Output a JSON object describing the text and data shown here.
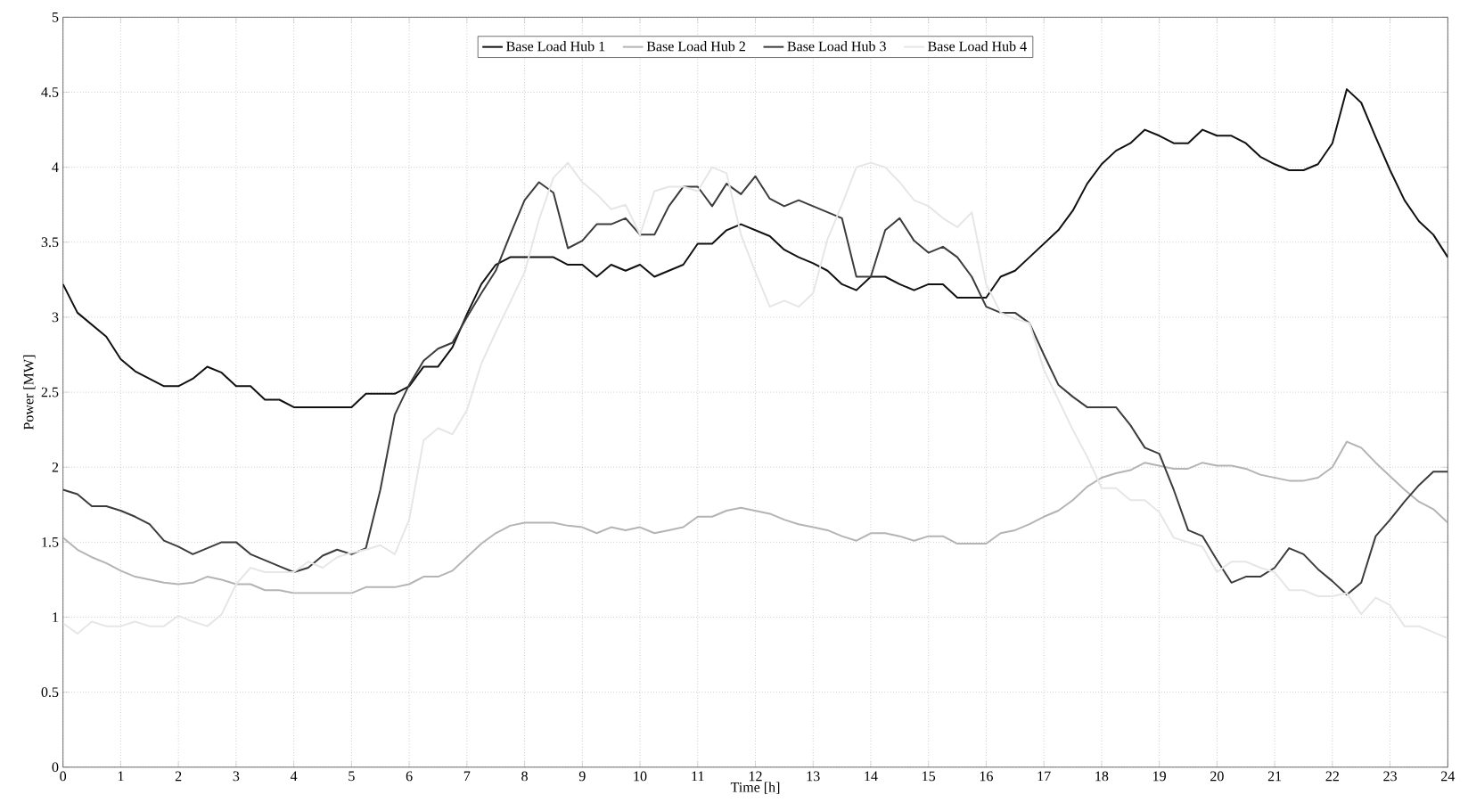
{
  "chart_data": {
    "type": "line",
    "xlabel": "Time [h]",
    "ylabel": "Power [MW]",
    "xlim": [
      0,
      24
    ],
    "ylim": [
      0,
      5
    ],
    "xticks": [
      0,
      1,
      2,
      3,
      4,
      5,
      6,
      7,
      8,
      9,
      10,
      11,
      12,
      13,
      14,
      15,
      16,
      17,
      18,
      19,
      20,
      21,
      22,
      23,
      24
    ],
    "yticks": [
      0,
      0.5,
      1,
      1.5,
      2,
      2.5,
      3,
      3.5,
      4,
      4.5,
      5
    ],
    "grid": true,
    "legend": "top",
    "x": [
      0,
      0.25,
      0.5,
      0.75,
      1,
      1.25,
      1.5,
      1.75,
      2,
      2.25,
      2.5,
      2.75,
      3,
      3.25,
      3.5,
      3.75,
      4,
      4.25,
      4.5,
      4.75,
      5,
      5.25,
      5.5,
      5.75,
      6,
      6.25,
      6.5,
      6.75,
      7,
      7.25,
      7.5,
      7.75,
      8,
      8.25,
      8.5,
      8.75,
      9,
      9.25,
      9.5,
      9.75,
      10,
      10.25,
      10.5,
      10.75,
      11,
      11.25,
      11.5,
      11.75,
      12,
      12.25,
      12.5,
      12.75,
      13,
      13.25,
      13.5,
      13.75,
      14,
      14.25,
      14.5,
      14.75,
      15,
      15.25,
      15.5,
      15.75,
      16,
      16.25,
      16.5,
      16.75,
      17,
      17.25,
      17.5,
      17.75,
      18,
      18.25,
      18.5,
      18.75,
      19,
      19.25,
      19.5,
      19.75,
      20,
      20.25,
      20.5,
      20.75,
      21,
      21.25,
      21.5,
      21.75,
      22,
      22.25,
      22.5,
      22.75,
      23,
      23.25,
      23.5,
      23.75,
      24
    ],
    "series": [
      {
        "name": "Base Load Hub 1",
        "color": "#111111",
        "values": [
          3.22,
          3.03,
          2.95,
          2.87,
          2.72,
          2.64,
          2.59,
          2.54,
          2.54,
          2.59,
          2.67,
          2.63,
          2.54,
          2.54,
          2.45,
          2.45,
          2.4,
          2.4,
          2.4,
          2.4,
          2.4,
          2.49,
          2.49,
          2.49,
          2.54,
          2.67,
          2.67,
          2.8,
          3.02,
          3.22,
          3.35,
          3.4,
          3.4,
          3.4,
          3.4,
          3.35,
          3.35,
          3.27,
          3.35,
          3.31,
          3.35,
          3.27,
          3.31,
          3.35,
          3.49,
          3.49,
          3.58,
          3.62,
          3.58,
          3.54,
          3.45,
          3.4,
          3.36,
          3.31,
          3.22,
          3.18,
          3.27,
          3.27,
          3.22,
          3.18,
          3.22,
          3.22,
          3.13,
          3.13,
          3.13,
          3.27,
          3.31,
          3.4,
          3.49,
          3.58,
          3.71,
          3.89,
          4.02,
          4.11,
          4.16,
          4.25,
          4.21,
          4.16,
          4.16,
          4.25,
          4.21,
          4.21,
          4.16,
          4.07,
          4.02,
          3.98,
          3.98,
          4.02,
          4.16,
          4.52,
          4.43,
          4.2,
          3.98,
          3.78,
          3.64,
          3.55,
          3.4
        ]
      },
      {
        "name": "Base Load Hub 2",
        "color": "#b4b4b4",
        "values": [
          1.53,
          1.45,
          1.4,
          1.36,
          1.31,
          1.27,
          1.25,
          1.23,
          1.22,
          1.23,
          1.27,
          1.25,
          1.22,
          1.22,
          1.18,
          1.18,
          1.16,
          1.16,
          1.16,
          1.16,
          1.16,
          1.2,
          1.2,
          1.2,
          1.22,
          1.27,
          1.27,
          1.31,
          1.4,
          1.49,
          1.56,
          1.61,
          1.63,
          1.63,
          1.63,
          1.61,
          1.6,
          1.56,
          1.6,
          1.58,
          1.6,
          1.56,
          1.58,
          1.6,
          1.67,
          1.67,
          1.71,
          1.73,
          1.71,
          1.69,
          1.65,
          1.62,
          1.6,
          1.58,
          1.54,
          1.51,
          1.56,
          1.56,
          1.54,
          1.51,
          1.54,
          1.54,
          1.49,
          1.49,
          1.49,
          1.56,
          1.58,
          1.62,
          1.67,
          1.71,
          1.78,
          1.87,
          1.93,
          1.96,
          1.98,
          2.03,
          2.01,
          1.99,
          1.99,
          2.03,
          2.01,
          2.01,
          1.99,
          1.95,
          1.93,
          1.91,
          1.91,
          1.93,
          2.0,
          2.17,
          2.13,
          2.03,
          1.94,
          1.85,
          1.77,
          1.72,
          1.63
        ]
      },
      {
        "name": "Base Load Hub 3",
        "color": "#3c3c3c",
        "values": [
          1.85,
          1.82,
          1.74,
          1.74,
          1.71,
          1.67,
          1.62,
          1.51,
          1.47,
          1.42,
          1.46,
          1.5,
          1.5,
          1.42,
          1.38,
          1.34,
          1.3,
          1.33,
          1.41,
          1.45,
          1.42,
          1.46,
          1.85,
          2.35,
          2.55,
          2.71,
          2.79,
          2.83,
          3.0,
          3.16,
          3.31,
          3.55,
          3.78,
          3.9,
          3.83,
          3.46,
          3.51,
          3.62,
          3.62,
          3.66,
          3.55,
          3.55,
          3.74,
          3.87,
          3.87,
          3.74,
          3.89,
          3.82,
          3.94,
          3.79,
          3.74,
          3.78,
          3.74,
          3.7,
          3.66,
          3.27,
          3.27,
          3.58,
          3.66,
          3.51,
          3.43,
          3.47,
          3.4,
          3.27,
          3.07,
          3.03,
          3.03,
          2.96,
          2.75,
          2.55,
          2.47,
          2.4,
          2.4,
          2.4,
          2.28,
          2.13,
          2.09,
          1.85,
          1.58,
          1.54,
          1.38,
          1.23,
          1.27,
          1.27,
          1.33,
          1.46,
          1.42,
          1.32,
          1.24,
          1.15,
          1.23,
          1.54,
          1.65,
          1.77,
          1.88,
          1.97,
          1.97
        ]
      },
      {
        "name": "Base Load Hub 4",
        "color": "#e6e6e6",
        "values": [
          0.96,
          0.89,
          0.97,
          0.94,
          0.94,
          0.97,
          0.94,
          0.94,
          1.01,
          0.97,
          0.94,
          1.02,
          1.22,
          1.33,
          1.3,
          1.3,
          1.3,
          1.37,
          1.33,
          1.4,
          1.43,
          1.45,
          1.48,
          1.42,
          1.65,
          2.18,
          2.26,
          2.22,
          2.38,
          2.69,
          2.9,
          3.1,
          3.3,
          3.65,
          3.93,
          4.03,
          3.9,
          3.82,
          3.72,
          3.75,
          3.55,
          3.84,
          3.87,
          3.87,
          3.84,
          4.0,
          3.96,
          3.55,
          3.3,
          3.07,
          3.11,
          3.07,
          3.16,
          3.52,
          3.75,
          4.0,
          4.03,
          4.0,
          3.9,
          3.78,
          3.74,
          3.66,
          3.6,
          3.7,
          3.22,
          3.03,
          2.99,
          2.96,
          2.65,
          2.45,
          2.25,
          2.07,
          1.86,
          1.86,
          1.78,
          1.78,
          1.7,
          1.53,
          1.5,
          1.47,
          1.3,
          1.37,
          1.37,
          1.33,
          1.3,
          1.18,
          1.18,
          1.14,
          1.14,
          1.16,
          1.02,
          1.13,
          1.08,
          0.94,
          0.94,
          0.9,
          0.86
        ]
      }
    ]
  }
}
